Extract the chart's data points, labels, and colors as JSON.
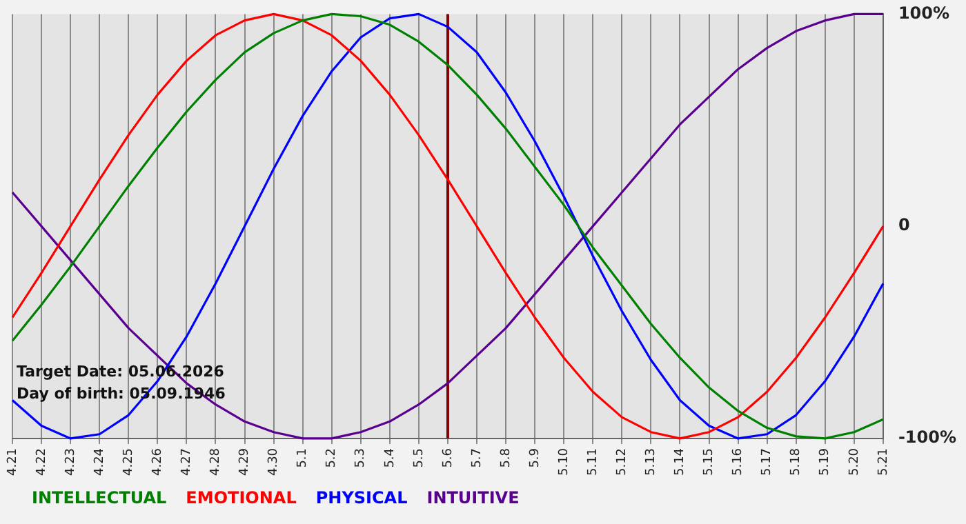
{
  "chart_data": {
    "type": "line",
    "categories": [
      "4.21",
      "4.22",
      "4.23",
      "4.24",
      "4.25",
      "4.26",
      "4.27",
      "4.28",
      "4.29",
      "4.30",
      "5.1",
      "5.2",
      "5.3",
      "5.4",
      "5.5",
      "5.6",
      "5.7",
      "5.8",
      "5.9",
      "5.10",
      "5.11",
      "5.12",
      "5.13",
      "5.14",
      "5.15",
      "5.16",
      "5.17",
      "5.18",
      "5.19",
      "5.20",
      "5.21"
    ],
    "series": [
      {
        "name": "INTELLECTUAL",
        "color": "#008000",
        "values": [
          -54,
          -37,
          -19,
          0,
          19,
          37,
          54,
          69,
          82,
          91,
          97,
          100,
          99,
          95,
          87,
          76,
          62,
          46,
          28,
          10,
          -10,
          -28,
          -46,
          -62,
          -76,
          -87,
          -95,
          -99,
          -100,
          -97,
          -91
        ]
      },
      {
        "name": "EMOTIONAL",
        "color": "#ff0000",
        "values": [
          -43,
          -22,
          0,
          22,
          43,
          62,
          78,
          90,
          97,
          100,
          97,
          90,
          78,
          62,
          43,
          22,
          0,
          -22,
          -43,
          -62,
          -78,
          -90,
          -97,
          -100,
          -97,
          -90,
          -78,
          -62,
          -43,
          -22,
          0
        ]
      },
      {
        "name": "PHYSICAL",
        "color": "#0000ff",
        "values": [
          -82,
          -94,
          -100,
          -98,
          -89,
          -73,
          -52,
          -27,
          0,
          27,
          52,
          73,
          89,
          98,
          100,
          94,
          82,
          63,
          40,
          14,
          -14,
          -40,
          -63,
          -82,
          -94,
          -100,
          -98,
          -89,
          -73,
          -52,
          -27
        ]
      },
      {
        "name": "INTUITIVE",
        "color": "#5a0090",
        "values": [
          16,
          0,
          -16,
          -32,
          -48,
          -61,
          -74,
          -84,
          -92,
          -97,
          -100,
          -100,
          -97,
          -92,
          -84,
          -74,
          -61,
          -48,
          -32,
          -16,
          0,
          16,
          32,
          48,
          61,
          74,
          84,
          92,
          97,
          100,
          100
        ]
      }
    ],
    "ylim": [
      -100,
      100
    ],
    "yticks": [
      {
        "value": -100,
        "label": "-100%"
      },
      0,
      {
        "value": 100,
        "label": "100%"
      }
    ],
    "grid": "x",
    "legend": "bottom",
    "marker": "none",
    "ref_lines": [
      {
        "axis": "x",
        "value": "5.6",
        "color": "#800000"
      }
    ],
    "annotations": [
      "Target Date: 05.06.2026",
      "Day of birth: 05.09.1946"
    ]
  }
}
